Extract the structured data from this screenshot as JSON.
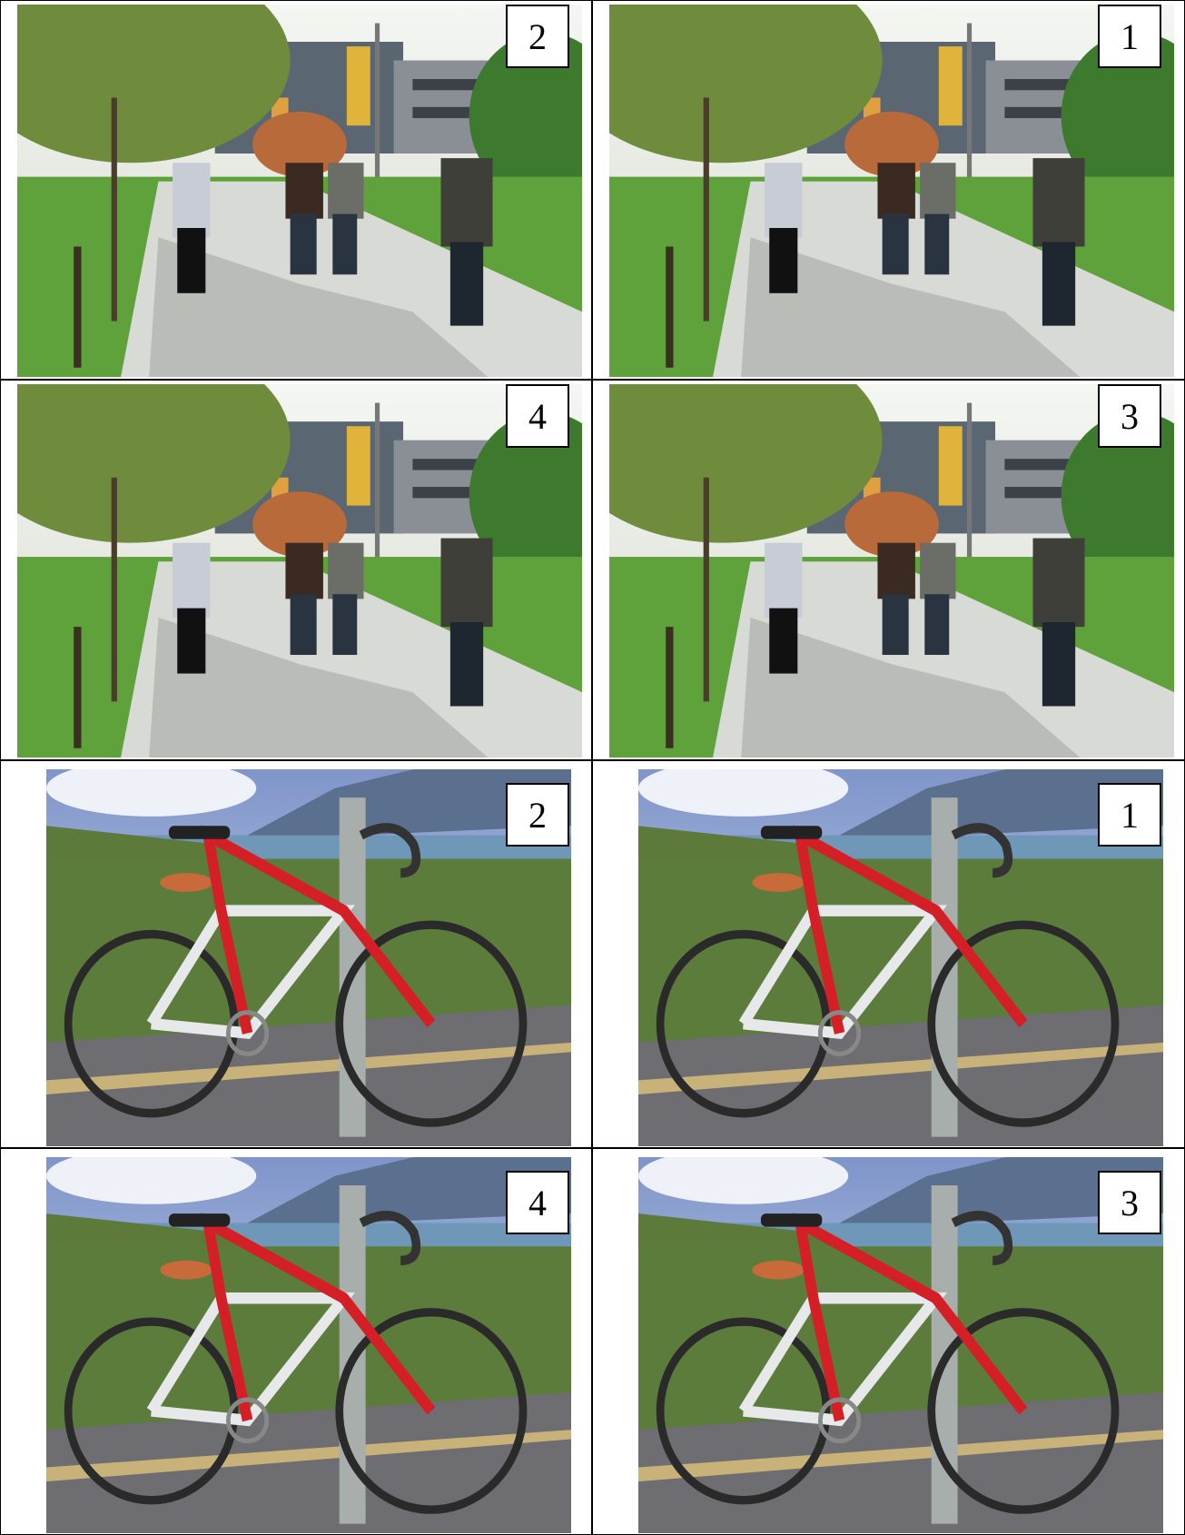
{
  "grid": {
    "rows": [
      [
        "2",
        "1"
      ],
      [
        "4",
        "3"
      ],
      [
        "2",
        "1"
      ],
      [
        "4",
        "3"
      ]
    ]
  }
}
